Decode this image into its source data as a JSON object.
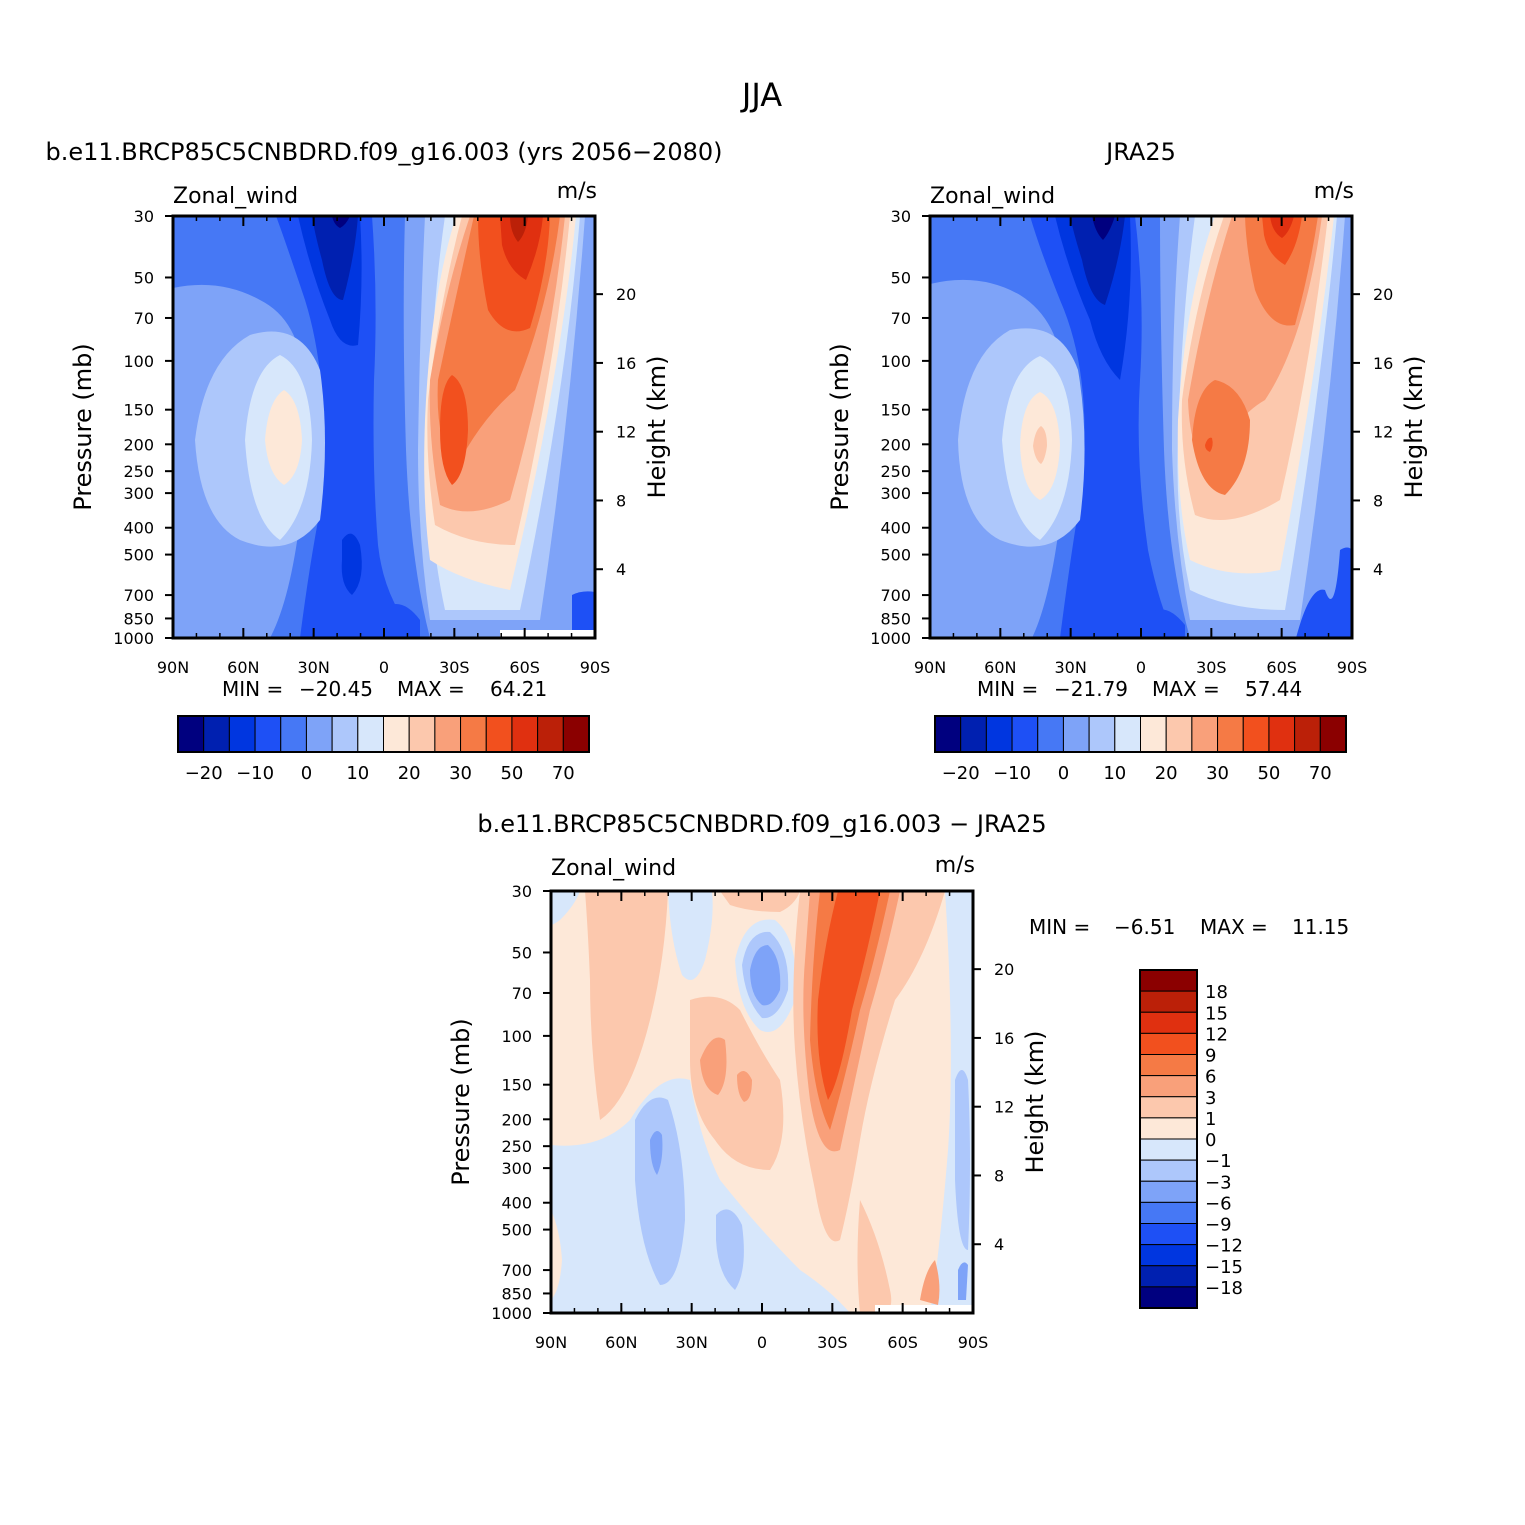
{
  "figure": {
    "title": "JJA"
  },
  "chart_data": [
    {
      "type": "heatmap",
      "title": "b.e11.BRCP85C5CNBDRD.f09_g16.003 (yrs 2056−2080)",
      "left_label": "Zonal_wind",
      "right_label": "m/s",
      "ylabel": "Pressure (mb)",
      "ylabel_right": "Height (km)",
      "x_ticks": [
        "90N",
        "60N",
        "30N",
        "0",
        "30S",
        "60S",
        "90S"
      ],
      "y_ticks": [
        "30",
        "50",
        "70",
        "100",
        "150",
        "200",
        "250",
        "300",
        "400",
        "500",
        "700",
        "850",
        "1000"
      ],
      "height_ticks": [
        "20",
        "16",
        "12",
        "8",
        "4"
      ],
      "stats": {
        "min_label": "MIN =",
        "min": "−20.45",
        "max_label": "MAX =",
        "max": "64.21"
      },
      "colorbar": {
        "levels": [
          -25,
          -20,
          -15,
          -10,
          -5,
          0,
          5,
          10,
          15,
          20,
          25,
          30,
          40,
          50,
          60,
          70
        ],
        "tick_labels": [
          "−20",
          "−10",
          "0",
          "10",
          "20",
          "30",
          "50",
          "70"
        ],
        "colors": [
          "#00007f",
          "#0020b0",
          "#0036e0",
          "#1e50f5",
          "#4678f5",
          "#7ea3f8",
          "#adc7fb",
          "#d7e7fb",
          "#fde8d8",
          "#fcc8ad",
          "#f9a07a",
          "#f57a45",
          "#f2501e",
          "#e03010",
          "#bb2008",
          "#8b0000"
        ]
      }
    },
    {
      "type": "heatmap",
      "title": "JRA25",
      "left_label": "Zonal_wind",
      "right_label": "m/s",
      "ylabel": "Pressure (mb)",
      "ylabel_right": "Height (km)",
      "x_ticks": [
        "90N",
        "60N",
        "30N",
        "0",
        "30S",
        "60S",
        "90S"
      ],
      "y_ticks": [
        "30",
        "50",
        "70",
        "100",
        "150",
        "200",
        "250",
        "300",
        "400",
        "500",
        "700",
        "850",
        "1000"
      ],
      "height_ticks": [
        "20",
        "16",
        "12",
        "8",
        "4"
      ],
      "stats": {
        "min_label": "MIN =",
        "min": "−21.79",
        "max_label": "MAX =",
        "max": "57.44"
      },
      "colorbar": {
        "levels": [
          -25,
          -20,
          -15,
          -10,
          -5,
          0,
          5,
          10,
          15,
          20,
          25,
          30,
          40,
          50,
          60,
          70
        ],
        "tick_labels": [
          "−20",
          "−10",
          "0",
          "10",
          "20",
          "30",
          "50",
          "70"
        ],
        "colors": [
          "#00007f",
          "#0020b0",
          "#0036e0",
          "#1e50f5",
          "#4678f5",
          "#7ea3f8",
          "#adc7fb",
          "#d7e7fb",
          "#fde8d8",
          "#fcc8ad",
          "#f9a07a",
          "#f57a45",
          "#f2501e",
          "#e03010",
          "#bb2008",
          "#8b0000"
        ]
      }
    },
    {
      "type": "heatmap",
      "title": "b.e11.BRCP85C5CNBDRD.f09_g16.003 − JRA25",
      "left_label": "Zonal_wind",
      "right_label": "m/s",
      "ylabel": "Pressure (mb)",
      "ylabel_right": "Height (km)",
      "x_ticks": [
        "90N",
        "60N",
        "30N",
        "0",
        "30S",
        "60S",
        "90S"
      ],
      "y_ticks": [
        "30",
        "50",
        "70",
        "100",
        "150",
        "200",
        "250",
        "300",
        "400",
        "500",
        "700",
        "850",
        "1000"
      ],
      "height_ticks": [
        "20",
        "16",
        "12",
        "8",
        "4"
      ],
      "stats": {
        "min_label": "MIN =",
        "min": "−6.51",
        "max_label": "MAX =",
        "max": "11.15"
      },
      "colorbar": {
        "levels": [
          -18,
          -15,
          -12,
          -9,
          -6,
          -3,
          -1,
          0,
          1,
          3,
          6,
          9,
          12,
          15,
          18
        ],
        "tick_labels": [
          "18",
          "15",
          "12",
          "9",
          "6",
          "3",
          "1",
          "0",
          "−1",
          "−3",
          "−6",
          "−9",
          "−12",
          "−15",
          "−18"
        ],
        "colors": [
          "#8b0000",
          "#bb2008",
          "#e03010",
          "#f2501e",
          "#f57a45",
          "#f9a07a",
          "#fcc8ad",
          "#fde8d8",
          "#d7e7fb",
          "#adc7fb",
          "#7ea3f8",
          "#4678f5",
          "#1e50f5",
          "#0036e0",
          "#0020b0",
          "#00007f"
        ]
      }
    }
  ]
}
